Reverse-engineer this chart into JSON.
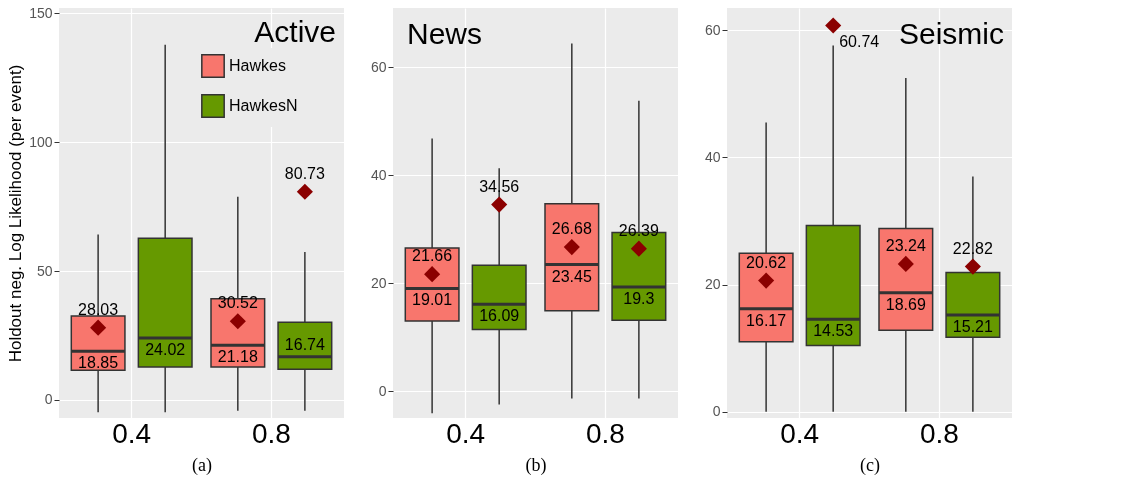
{
  "chart_data": [
    {
      "type": "box",
      "title": "Active",
      "xlabel": "(a)",
      "ylabel": "Holdout neg. Log Likelihood (per event)",
      "categories": [
        "0.4",
        "0.8"
      ],
      "ylim": [
        -7,
        152
      ],
      "yticks": [
        0,
        50,
        100,
        150
      ],
      "grid": true,
      "legend": "top right",
      "marker": "diamond",
      "series": [
        {
          "name": "Hawkes",
          "color": "#f8766d",
          "boxes": [
            {
              "low": -4.8,
              "q1": 11.5,
              "median": 18.85,
              "q3": 32.6,
              "high": 64.2,
              "mean": 28.03
            },
            {
              "low": -4.2,
              "q1": 12.8,
              "median": 21.18,
              "q3": 39.2,
              "high": 78.8,
              "mean": 30.52
            }
          ]
        },
        {
          "name": "HawkesN",
          "color": "#669900",
          "boxes": [
            {
              "low": -4.8,
              "q1": 12.8,
              "median": 24.02,
              "q3": 62.7,
              "high": 137.7
            },
            {
              "low": -4.2,
              "q1": 11.9,
              "median": 16.74,
              "q3": 30.1,
              "high": 57.4,
              "mean": 80.73
            }
          ]
        }
      ],
      "annotations": [
        "28.03",
        "18.85",
        "24.02",
        "30.52",
        "21.18",
        "80.73",
        "16.74"
      ]
    },
    {
      "type": "box",
      "title": "News",
      "xlabel": "(b)",
      "categories": [
        "0.4",
        "0.8"
      ],
      "ylim": [
        -5,
        71
      ],
      "yticks": [
        0,
        20,
        40,
        60
      ],
      "grid": true,
      "marker": "diamond",
      "series": [
        {
          "name": "Hawkes",
          "color": "#f8766d",
          "boxes": [
            {
              "low": -4.1,
              "q1": 13.0,
              "median": 19.01,
              "q3": 26.5,
              "high": 46.8,
              "mean": 21.66
            },
            {
              "low": -1.4,
              "q1": 14.9,
              "median": 23.45,
              "q3": 34.7,
              "high": 64.4,
              "mean": 26.68
            }
          ]
        },
        {
          "name": "HawkesN",
          "color": "#669900",
          "boxes": [
            {
              "low": -2.5,
              "q1": 11.4,
              "median": 16.09,
              "q3": 23.3,
              "high": 41.3,
              "mean": 34.56
            },
            {
              "low": -1.4,
              "q1": 13.1,
              "median": 19.3,
              "q3": 29.4,
              "high": 53.8,
              "mean": 26.39
            }
          ]
        }
      ],
      "annotations": [
        "21.66",
        "19.01",
        "34.56",
        "16.09",
        "26.68",
        "23.45",
        "26.39",
        "19.3"
      ]
    },
    {
      "type": "box",
      "title": "Seismic",
      "xlabel": "(c)",
      "categories": [
        "0.4",
        "0.8"
      ],
      "ylim": [
        -1,
        63.5
      ],
      "yticks": [
        0,
        20,
        40,
        60
      ],
      "grid": true,
      "marker": "diamond",
      "series": [
        {
          "name": "Hawkes",
          "color": "#f8766d",
          "boxes": [
            {
              "low": 0,
              "q1": 11.0,
              "median": 16.17,
              "q3": 24.9,
              "high": 45.5,
              "mean": 20.62
            },
            {
              "low": 0,
              "q1": 12.8,
              "median": 18.69,
              "q3": 28.8,
              "high": 52.5,
              "mean": 23.24
            }
          ]
        },
        {
          "name": "HawkesN",
          "color": "#669900",
          "boxes": [
            {
              "low": 0,
              "q1": 10.4,
              "median": 14.53,
              "q3": 29.3,
              "high": 57.6,
              "mean": 60.74
            },
            {
              "low": 0,
              "q1": 11.7,
              "median": 15.21,
              "q3": 21.9,
              "high": 37.0,
              "mean": 22.82
            }
          ]
        }
      ],
      "annotations": [
        "20.62",
        "16.17",
        "60.74",
        "14.53",
        "23.24",
        "18.69",
        "22.82",
        "15.21"
      ]
    }
  ]
}
